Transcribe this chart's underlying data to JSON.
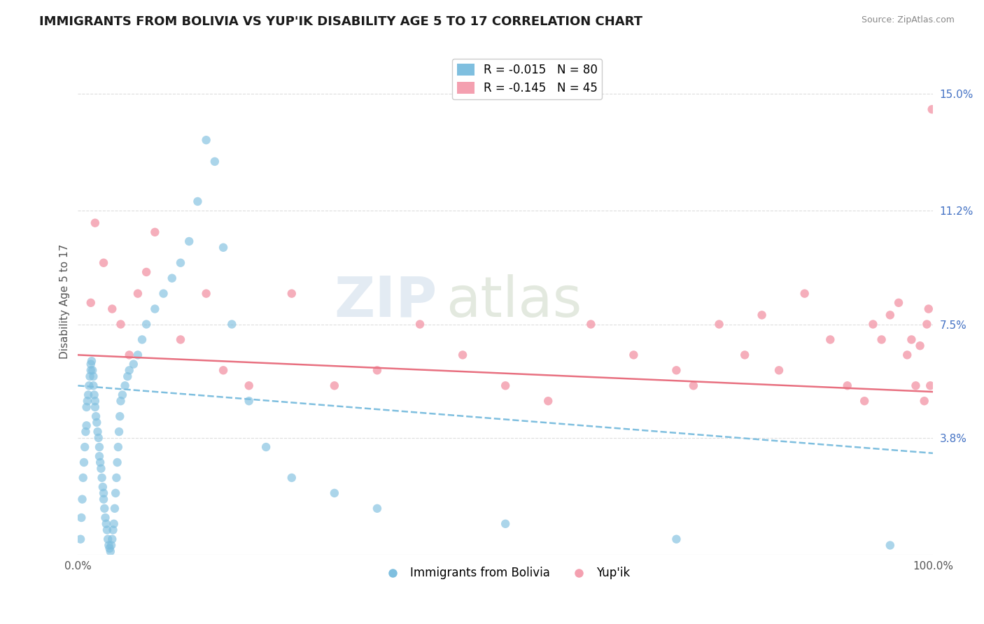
{
  "title": "IMMIGRANTS FROM BOLIVIA VS YUP'IK DISABILITY AGE 5 TO 17 CORRELATION CHART",
  "source": "Source: ZipAtlas.com",
  "ylabel": "Disability Age 5 to 17",
  "legend_entries": [
    {
      "label": "R = -0.015   N = 80",
      "color": "#6baed6"
    },
    {
      "label": "R = -0.145   N = 45",
      "color": "#f08080"
    }
  ],
  "x_min": 0.0,
  "x_max": 100.0,
  "y_min": 0.0,
  "y_max": 16.5,
  "y_ticks_right": [
    3.8,
    7.5,
    11.2,
    15.0
  ],
  "y_tick_labels_right": [
    "3.8%",
    "7.5%",
    "11.2%",
    "15.0%"
  ],
  "x_tick_labels": [
    "0.0%",
    "100.0%"
  ],
  "blue_color": "#7fbfdf",
  "pink_color": "#f4a0b0",
  "pink_line_color": "#e87080",
  "blue_line_color": "#7fbfdf",
  "blue_trend": [
    0.0,
    5.5,
    100.0,
    3.3
  ],
  "pink_trend": [
    0.0,
    6.5,
    100.0,
    5.3
  ],
  "watermark_zip": "ZIP",
  "watermark_atlas": "atlas",
  "background_color": "#ffffff",
  "grid_color": "#dddddd",
  "blue_scatter_x": [
    0.3,
    0.4,
    0.5,
    0.6,
    0.7,
    0.8,
    0.9,
    1.0,
    1.0,
    1.1,
    1.2,
    1.3,
    1.4,
    1.5,
    1.5,
    1.6,
    1.7,
    1.8,
    1.8,
    1.9,
    2.0,
    2.0,
    2.1,
    2.2,
    2.3,
    2.4,
    2.5,
    2.5,
    2.6,
    2.7,
    2.8,
    2.9,
    3.0,
    3.0,
    3.1,
    3.2,
    3.3,
    3.4,
    3.5,
    3.6,
    3.7,
    3.8,
    3.9,
    4.0,
    4.1,
    4.2,
    4.3,
    4.4,
    4.5,
    4.6,
    4.7,
    4.8,
    4.9,
    5.0,
    5.2,
    5.5,
    5.8,
    6.0,
    6.5,
    7.0,
    7.5,
    8.0,
    9.0,
    10.0,
    11.0,
    12.0,
    13.0,
    14.0,
    15.0,
    16.0,
    17.0,
    18.0,
    20.0,
    22.0,
    25.0,
    30.0,
    35.0,
    50.0,
    70.0,
    95.0
  ],
  "blue_scatter_y": [
    0.5,
    1.2,
    1.8,
    2.5,
    3.0,
    3.5,
    4.0,
    4.2,
    4.8,
    5.0,
    5.2,
    5.5,
    5.8,
    6.0,
    6.2,
    6.3,
    6.0,
    5.8,
    5.5,
    5.2,
    5.0,
    4.8,
    4.5,
    4.3,
    4.0,
    3.8,
    3.5,
    3.2,
    3.0,
    2.8,
    2.5,
    2.2,
    2.0,
    1.8,
    1.5,
    1.2,
    1.0,
    0.8,
    0.5,
    0.3,
    0.2,
    0.1,
    0.3,
    0.5,
    0.8,
    1.0,
    1.5,
    2.0,
    2.5,
    3.0,
    3.5,
    4.0,
    4.5,
    5.0,
    5.2,
    5.5,
    5.8,
    6.0,
    6.2,
    6.5,
    7.0,
    7.5,
    8.0,
    8.5,
    9.0,
    9.5,
    10.2,
    11.5,
    13.5,
    12.8,
    10.0,
    7.5,
    5.0,
    3.5,
    2.5,
    2.0,
    1.5,
    1.0,
    0.5,
    0.3
  ],
  "pink_scatter_x": [
    1.5,
    2.0,
    3.0,
    4.0,
    5.0,
    6.0,
    7.0,
    8.0,
    9.0,
    12.0,
    15.0,
    17.0,
    20.0,
    25.0,
    30.0,
    35.0,
    40.0,
    45.0,
    50.0,
    55.0,
    60.0,
    65.0,
    70.0,
    72.0,
    75.0,
    78.0,
    80.0,
    82.0,
    85.0,
    88.0,
    90.0,
    92.0,
    93.0,
    94.0,
    95.0,
    96.0,
    97.0,
    97.5,
    98.0,
    98.5,
    99.0,
    99.3,
    99.5,
    99.7,
    99.9
  ],
  "pink_scatter_y": [
    8.2,
    10.8,
    9.5,
    8.0,
    7.5,
    6.5,
    8.5,
    9.2,
    10.5,
    7.0,
    8.5,
    6.0,
    5.5,
    8.5,
    5.5,
    6.0,
    7.5,
    6.5,
    5.5,
    5.0,
    7.5,
    6.5,
    6.0,
    5.5,
    7.5,
    6.5,
    7.8,
    6.0,
    8.5,
    7.0,
    5.5,
    5.0,
    7.5,
    7.0,
    7.8,
    8.2,
    6.5,
    7.0,
    5.5,
    6.8,
    5.0,
    7.5,
    8.0,
    5.5,
    14.5
  ]
}
